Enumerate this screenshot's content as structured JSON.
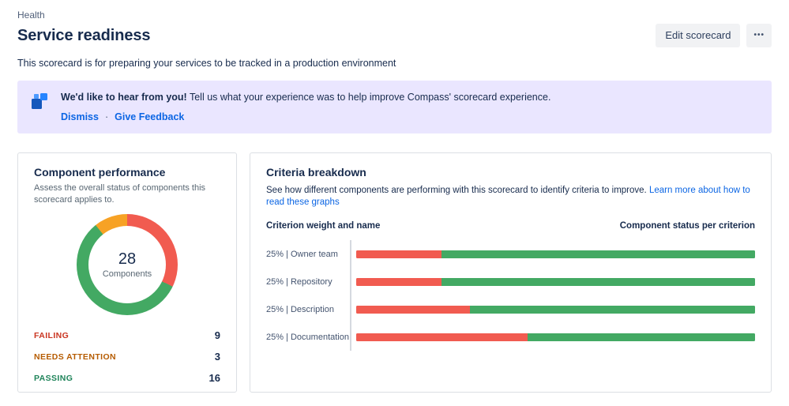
{
  "colors": {
    "banner_bg": "#EAE6FF",
    "link": "#0C66E4",
    "failing": "#F15B50",
    "attention": "#F7A225",
    "passing": "#43A963",
    "failing_text": "#CA3521",
    "attention_text": "#B65C02",
    "passing_text": "#1F845A"
  },
  "breadcrumb": "Health",
  "header": {
    "title": "Service readiness",
    "edit_button": "Edit scorecard",
    "more_button": "•••",
    "description": "This scorecard is for preparing your services to be tracked in a production environment"
  },
  "banner": {
    "headline": "We'd like to hear from you!",
    "message": "Tell us what your experience was to help improve Compass' scorecard experience.",
    "dismiss_link": "Dismiss",
    "separator": "·",
    "feedback_link": "Give Feedback"
  },
  "chart_data": [
    {
      "type": "pie",
      "title": "Component performance",
      "subtitle": "Assess the overall status of components this scorecard applies to.",
      "center_value": "28",
      "center_label": "Components",
      "legend_position": "bottom",
      "gradient_order": [
        0,
        2,
        1
      ],
      "slices": [
        {
          "label": "FAILING",
          "value": 9,
          "color": "#F15B50",
          "label_color": "#CA3521"
        },
        {
          "label": "NEEDS ATTENTION",
          "value": 3,
          "color": "#F7A225",
          "label_color": "#B65C02"
        },
        {
          "label": "PASSING",
          "value": 16,
          "color": "#43A963",
          "label_color": "#1F845A"
        }
      ]
    },
    {
      "type": "bar",
      "title": "Criteria breakdown",
      "subtitle": "See how different components are performing with this scorecard to identify criteria to improve.",
      "subtitle_link": "Learn more about how to read these graphs",
      "left_header": "Criterion weight and name",
      "right_header": "Component status per criterion",
      "xlim_pct": [
        0,
        100
      ],
      "series_colors": {
        "failing": "#F15B50",
        "passing": "#43A963"
      },
      "rows": [
        {
          "label": "25% | Owner team",
          "failing_pct": 21.4,
          "passing_pct": 78.6
        },
        {
          "label": "25% | Repository",
          "failing_pct": 21.4,
          "passing_pct": 78.6
        },
        {
          "label": "25% | Description",
          "failing_pct": 28.6,
          "passing_pct": 71.4
        },
        {
          "label": "25% | Documentation",
          "failing_pct": 42.9,
          "passing_pct": 57.1
        }
      ]
    }
  ]
}
